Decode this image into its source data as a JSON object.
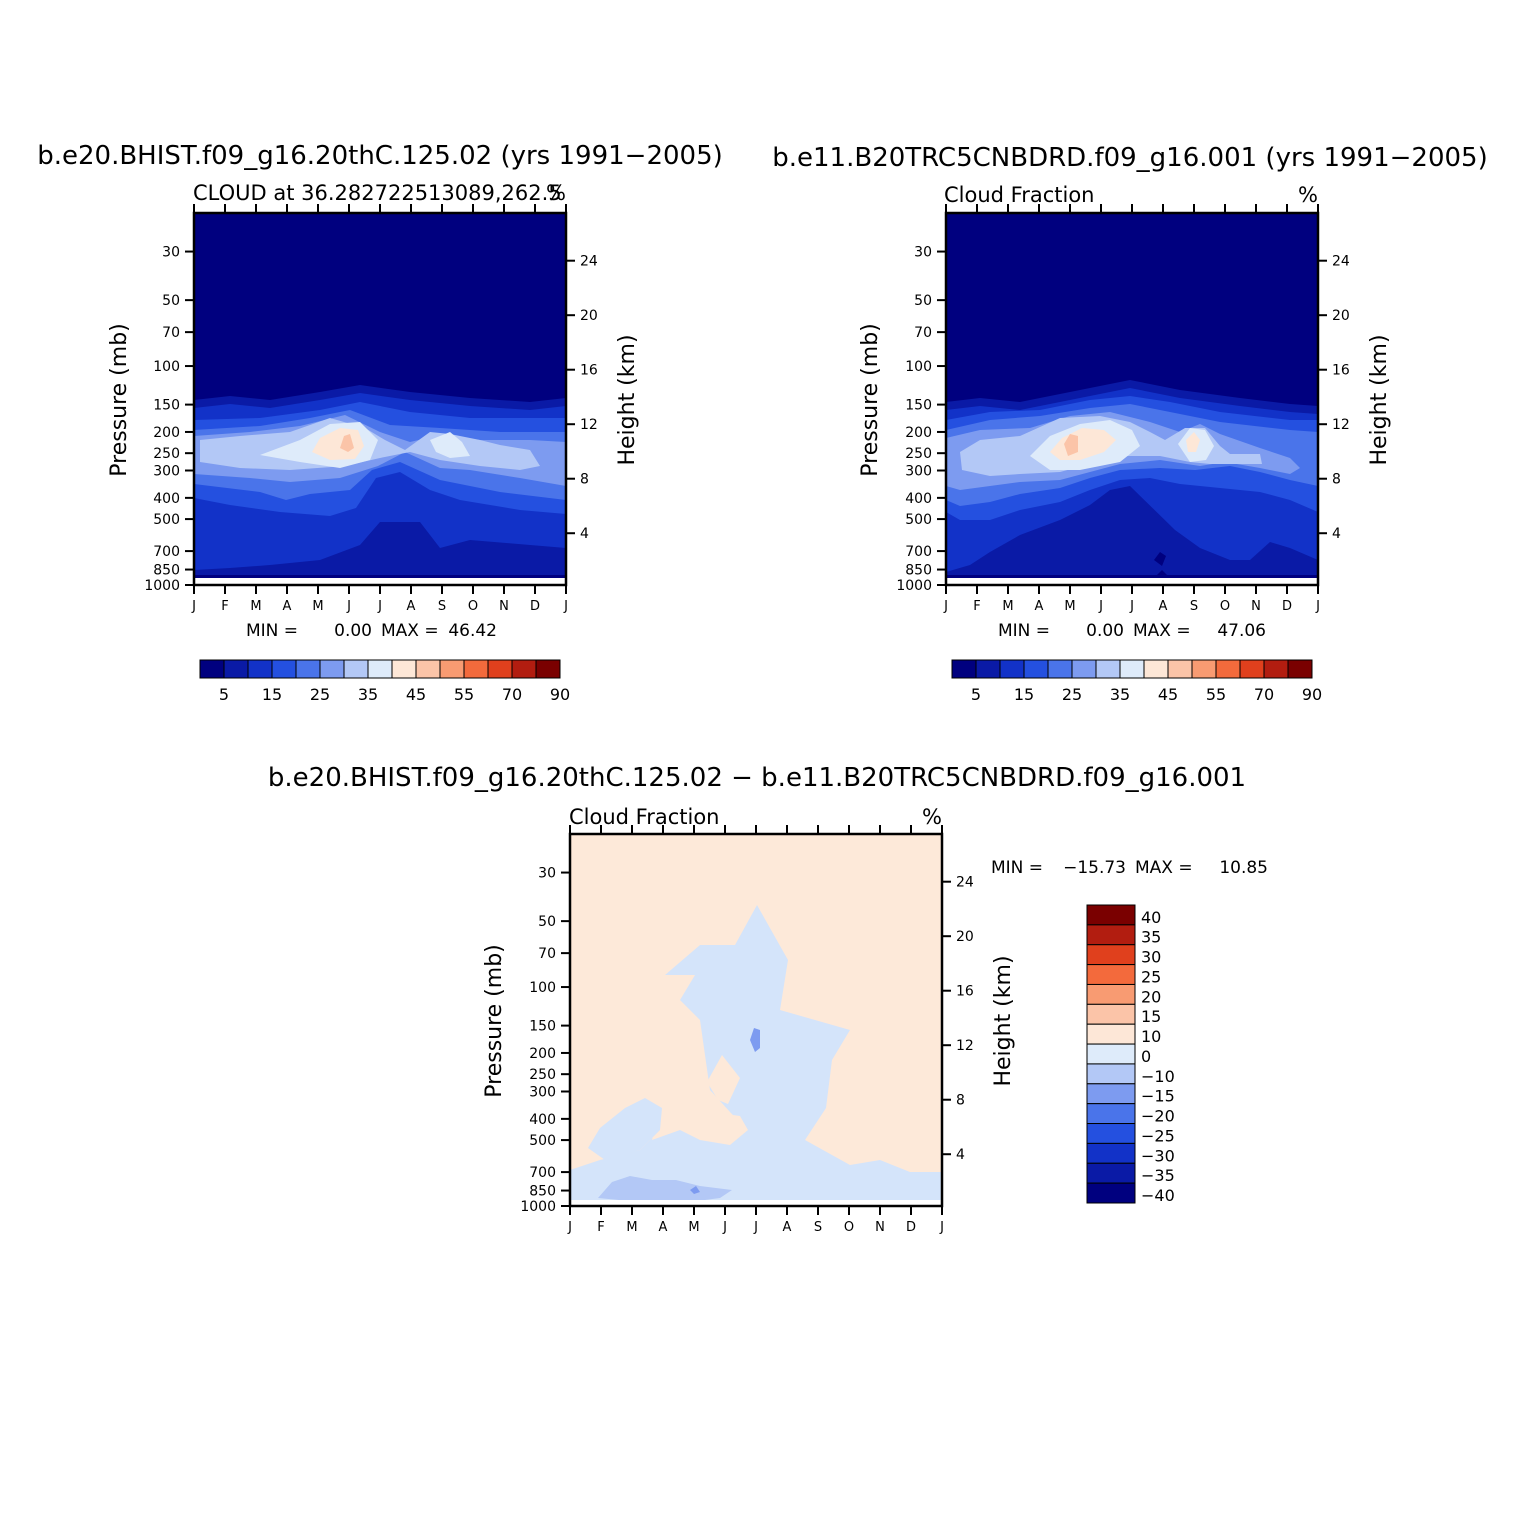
{
  "chart_data": [
    {
      "type": "heatmap",
      "title": "b.e20.BHIST.f09_g16.20thC.125.02 (yrs 1991−2005)",
      "subtitle_left": "CLOUD at 36.282722513089,262.5",
      "subtitle_right": "%",
      "ylabel": "Pressure (mb)",
      "y2label": "Height (km)",
      "y_ticks": [
        "30",
        "50",
        "70",
        "100",
        "150",
        "200",
        "250",
        "300",
        "400",
        "500",
        "700",
        "850",
        "1000"
      ],
      "y2_ticks": [
        "24",
        "20",
        "16",
        "12",
        "8",
        "4"
      ],
      "x_ticks": [
        "J",
        "F",
        "M",
        "A",
        "M",
        "J",
        "J",
        "A",
        "S",
        "O",
        "N",
        "D",
        "J"
      ],
      "min_label": "MIN =",
      "min_value": "0.00",
      "max_label": "MAX =",
      "max_value": "46.42",
      "colorbar_ticks": [
        "5",
        "15",
        "25",
        "35",
        "45",
        "55",
        "70",
        "90"
      ]
    },
    {
      "type": "heatmap",
      "title": "b.e11.B20TRC5CNBDRD.f09_g16.001 (yrs 1991−2005)",
      "subtitle_left": "Cloud Fraction",
      "subtitle_right": "%",
      "ylabel": "Pressure (mb)",
      "y2label": "Height (km)",
      "y_ticks": [
        "30",
        "50",
        "70",
        "100",
        "150",
        "200",
        "250",
        "300",
        "400",
        "500",
        "700",
        "850",
        "1000"
      ],
      "y2_ticks": [
        "24",
        "20",
        "16",
        "12",
        "8",
        "4"
      ],
      "x_ticks": [
        "J",
        "F",
        "M",
        "A",
        "M",
        "J",
        "J",
        "A",
        "S",
        "O",
        "N",
        "D",
        "J"
      ],
      "min_label": "MIN =",
      "min_value": "0.00",
      "max_label": "MAX =",
      "max_value": "47.06",
      "colorbar_ticks": [
        "5",
        "15",
        "25",
        "35",
        "45",
        "55",
        "70",
        "90"
      ]
    },
    {
      "type": "heatmap",
      "title": "b.e20.BHIST.f09_g16.20thC.125.02 − b.e11.B20TRC5CNBDRD.f09_g16.001",
      "subtitle_left": "Cloud Fraction",
      "subtitle_right": "%",
      "ylabel": "Pressure (mb)",
      "y2label": "Height (km)",
      "y_ticks": [
        "30",
        "50",
        "70",
        "100",
        "150",
        "200",
        "250",
        "300",
        "400",
        "500",
        "700",
        "850",
        "1000"
      ],
      "y2_ticks": [
        "24",
        "20",
        "16",
        "12",
        "8",
        "4"
      ],
      "x_ticks": [
        "J",
        "F",
        "M",
        "A",
        "M",
        "J",
        "J",
        "A",
        "S",
        "O",
        "N",
        "D",
        "J"
      ],
      "min_label": "MIN =",
      "min_value": "−15.73",
      "max_label": "MAX =",
      "max_value": "10.85",
      "colorbar_ticks": [
        "40",
        "35",
        "30",
        "25",
        "20",
        "15",
        "10",
        "0",
        "−10",
        "−15",
        "−20",
        "−25",
        "−30",
        "−35",
        "−40"
      ]
    }
  ],
  "colors": {
    "seq_colorbar": [
      "#00007f",
      "#0a1aa6",
      "#1232c8",
      "#2450e0",
      "#4a74ea",
      "#7d9bf0",
      "#b3c8f6",
      "#deebfa",
      "#fde7d7",
      "#fbc4a8",
      "#f89b72",
      "#f36a3c",
      "#e0401d",
      "#b21d10",
      "#7a0000"
    ],
    "div_colorbar": [
      "#7a0000",
      "#b21d10",
      "#e0401d",
      "#f36a3c",
      "#f89b72",
      "#fbc4a8",
      "#fde7d7",
      "#deebfa",
      "#b3c8f6",
      "#7d9bf0",
      "#4a74ea",
      "#2450e0",
      "#1232c8",
      "#0a1aa6",
      "#00007f"
    ],
    "diff_positive": "#fde9d9",
    "diff_negative": "#d4e4fa",
    "diff_negative_strong": "#b3c8f6"
  }
}
